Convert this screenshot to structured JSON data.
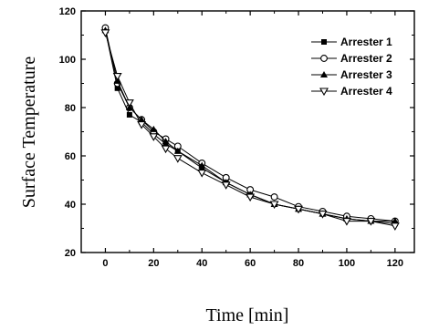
{
  "chart_data": {
    "type": "line",
    "xlabel": "Time [min]",
    "ylabel": "Surface Temperature",
    "xlim": [
      -10,
      128
    ],
    "ylim": [
      20,
      120
    ],
    "xticks": [
      0,
      20,
      40,
      60,
      80,
      100,
      120
    ],
    "yticks": [
      20,
      40,
      60,
      80,
      100,
      120
    ],
    "legend_position": "top-right",
    "grid": false,
    "series": [
      {
        "name": "Arrester 1",
        "marker": "square-filled",
        "points": [
          [
            0,
            112
          ],
          [
            5,
            88
          ],
          [
            10,
            77
          ],
          [
            15,
            74
          ],
          [
            20,
            69
          ],
          [
            25,
            65
          ],
          [
            30,
            62
          ],
          [
            40,
            55
          ],
          [
            50,
            49
          ],
          [
            60,
            44
          ],
          [
            70,
            40
          ],
          [
            80,
            38
          ],
          [
            90,
            36
          ],
          [
            100,
            34
          ],
          [
            110,
            33
          ],
          [
            120,
            32
          ]
        ]
      },
      {
        "name": "Arrester 2",
        "marker": "circle-open",
        "points": [
          [
            0,
            113
          ],
          [
            5,
            90
          ],
          [
            10,
            80
          ],
          [
            15,
            75
          ],
          [
            20,
            70
          ],
          [
            25,
            67
          ],
          [
            30,
            64
          ],
          [
            40,
            57
          ],
          [
            50,
            51
          ],
          [
            60,
            46
          ],
          [
            70,
            43
          ],
          [
            80,
            39
          ],
          [
            90,
            37
          ],
          [
            100,
            35
          ],
          [
            110,
            34
          ],
          [
            120,
            33
          ]
        ]
      },
      {
        "name": "Arrester 3",
        "marker": "triangle-up-filled",
        "points": [
          [
            0,
            112
          ],
          [
            5,
            91
          ],
          [
            10,
            80
          ],
          [
            15,
            75
          ],
          [
            20,
            71
          ],
          [
            25,
            66
          ],
          [
            30,
            62
          ],
          [
            40,
            56
          ],
          [
            50,
            49
          ],
          [
            60,
            44
          ],
          [
            70,
            40
          ],
          [
            80,
            38
          ],
          [
            90,
            36
          ],
          [
            100,
            34
          ],
          [
            110,
            33
          ],
          [
            120,
            33
          ]
        ]
      },
      {
        "name": "Arrester 4",
        "marker": "triangle-down-open",
        "points": [
          [
            0,
            111
          ],
          [
            5,
            93
          ],
          [
            10,
            82
          ],
          [
            15,
            73
          ],
          [
            20,
            68
          ],
          [
            25,
            63
          ],
          [
            30,
            59
          ],
          [
            40,
            53
          ],
          [
            50,
            48
          ],
          [
            60,
            43
          ],
          [
            70,
            40
          ],
          [
            80,
            38
          ],
          [
            90,
            36
          ],
          [
            100,
            33
          ],
          [
            110,
            33
          ],
          [
            120,
            31
          ]
        ]
      }
    ]
  }
}
